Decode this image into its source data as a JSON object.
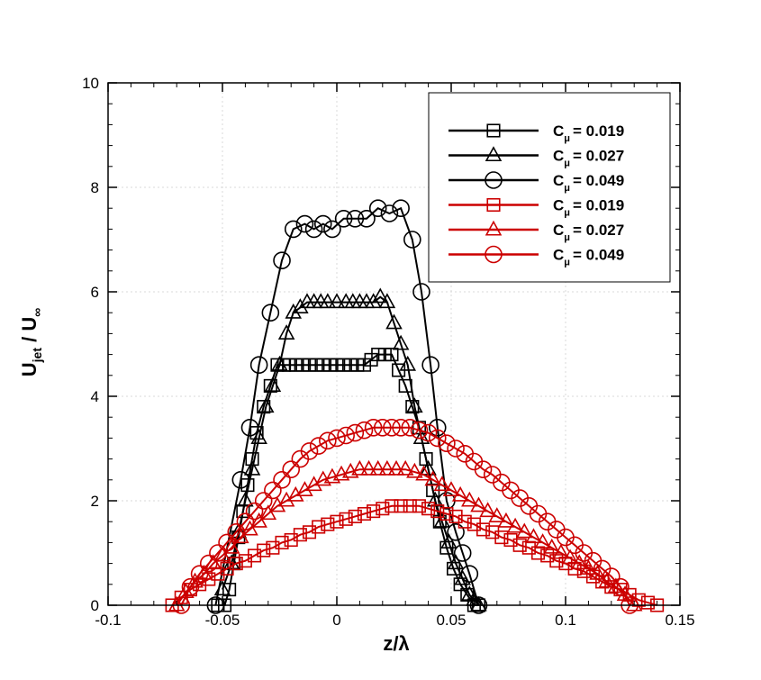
{
  "chart_data": {
    "type": "line",
    "xlabel": "z/λ",
    "ylabel": "U_jet / U_∞",
    "xlim": [
      -0.1,
      0.15
    ],
    "ylim": [
      0,
      10
    ],
    "xticks": [
      -0.1,
      -0.05,
      0,
      0.05,
      0.1,
      0.15
    ],
    "xtick_labels": [
      "-0.1",
      "-0.05",
      "0",
      "0.05",
      "0.1",
      "0.15"
    ],
    "yticks": [
      0,
      2,
      4,
      6,
      8,
      10
    ],
    "ytick_labels": [
      "0",
      "2",
      "4",
      "6",
      "8",
      "10"
    ],
    "grid": true,
    "legend_position": "top-right",
    "colors": {
      "black": "#000000",
      "red": "#cc0000"
    },
    "series": [
      {
        "label_prefix": "C",
        "label_sub": "μ",
        "label_value": "= 0.019",
        "color": "#000000",
        "marker": "square",
        "x": [
          -0.052,
          -0.049,
          -0.047,
          -0.045,
          -0.043,
          -0.041,
          -0.039,
          -0.037,
          -0.035,
          -0.032,
          -0.029,
          -0.026,
          -0.023,
          -0.021,
          -0.018,
          -0.015,
          -0.012,
          -0.009,
          -0.006,
          -0.003,
          0.0,
          0.003,
          0.006,
          0.009,
          0.012,
          0.015,
          0.018,
          0.021,
          0.024,
          0.027,
          0.03,
          0.033,
          0.036,
          0.039,
          0.042,
          0.045,
          0.048,
          0.051,
          0.054,
          0.057,
          0.06,
          0.062
        ],
        "y": [
          0.0,
          0.0,
          0.3,
          0.8,
          1.3,
          1.8,
          2.3,
          2.8,
          3.3,
          3.8,
          4.2,
          4.6,
          4.6,
          4.6,
          4.6,
          4.6,
          4.6,
          4.6,
          4.6,
          4.6,
          4.6,
          4.6,
          4.6,
          4.6,
          4.6,
          4.7,
          4.8,
          4.8,
          4.8,
          4.5,
          4.2,
          3.8,
          3.4,
          2.8,
          2.2,
          1.6,
          1.1,
          0.7,
          0.4,
          0.2,
          0.0,
          0.0
        ]
      },
      {
        "label_prefix": "C",
        "label_sub": "μ",
        "label_value": "= 0.027",
        "color": "#000000",
        "marker": "triangle",
        "x": [
          -0.05,
          -0.046,
          -0.043,
          -0.04,
          -0.037,
          -0.034,
          -0.031,
          -0.028,
          -0.025,
          -0.022,
          -0.019,
          -0.016,
          -0.013,
          -0.01,
          -0.007,
          -0.004,
          0.0,
          0.004,
          0.007,
          0.01,
          0.013,
          0.016,
          0.019,
          0.022,
          0.025,
          0.028,
          0.031,
          0.034,
          0.037,
          0.04,
          0.043,
          0.046,
          0.049,
          0.052,
          0.055,
          0.058,
          0.06,
          0.062
        ],
        "y": [
          0.3,
          0.8,
          1.4,
          2.0,
          2.6,
          3.2,
          3.8,
          4.2,
          4.6,
          5.2,
          5.6,
          5.7,
          5.8,
          5.8,
          5.8,
          5.8,
          5.8,
          5.8,
          5.8,
          5.8,
          5.8,
          5.8,
          5.9,
          5.8,
          5.4,
          5.0,
          4.6,
          3.8,
          3.2,
          2.6,
          2.0,
          1.6,
          1.2,
          0.8,
          0.5,
          0.2,
          0.1,
          0.0
        ]
      },
      {
        "label_prefix": "C",
        "label_sub": "μ",
        "label_value": "= 0.049",
        "color": "#000000",
        "marker": "circle",
        "x": [
          -0.053,
          -0.042,
          -0.038,
          -0.034,
          -0.029,
          -0.024,
          -0.019,
          -0.014,
          -0.01,
          -0.006,
          -0.002,
          0.003,
          0.008,
          0.013,
          0.018,
          0.023,
          0.028,
          0.033,
          0.037,
          0.041,
          0.044,
          0.048,
          0.052,
          0.055,
          0.058,
          0.062
        ],
        "y": [
          0.0,
          2.4,
          3.4,
          4.6,
          5.6,
          6.6,
          7.2,
          7.3,
          7.2,
          7.3,
          7.2,
          7.4,
          7.4,
          7.4,
          7.6,
          7.5,
          7.6,
          7.0,
          6.0,
          4.6,
          3.4,
          2.0,
          1.4,
          1.0,
          0.6,
          0.0
        ]
      },
      {
        "label_prefix": "C",
        "label_sub": "μ",
        "label_value": "= 0.019",
        "color": "#cc0000",
        "marker": "square",
        "x": [
          -0.072,
          -0.068,
          -0.064,
          -0.06,
          -0.056,
          -0.052,
          -0.048,
          -0.044,
          -0.04,
          -0.036,
          -0.032,
          -0.028,
          -0.024,
          -0.02,
          -0.016,
          -0.012,
          -0.008,
          -0.004,
          0.0,
          0.004,
          0.008,
          0.012,
          0.016,
          0.02,
          0.024,
          0.028,
          0.032,
          0.036,
          0.04,
          0.044,
          0.048,
          0.052,
          0.056,
          0.06,
          0.064,
          0.068,
          0.072,
          0.076,
          0.08,
          0.084,
          0.088,
          0.092,
          0.096,
          0.1,
          0.104,
          0.108,
          0.112,
          0.116,
          0.12,
          0.124,
          0.128,
          0.132,
          0.136,
          0.14
        ],
        "y": [
          0.0,
          0.15,
          0.3,
          0.4,
          0.5,
          0.6,
          0.7,
          0.8,
          0.85,
          0.95,
          1.05,
          1.1,
          1.2,
          1.25,
          1.35,
          1.4,
          1.5,
          1.55,
          1.6,
          1.65,
          1.7,
          1.75,
          1.8,
          1.85,
          1.9,
          1.9,
          1.9,
          1.9,
          1.85,
          1.8,
          1.75,
          1.7,
          1.6,
          1.55,
          1.45,
          1.4,
          1.3,
          1.25,
          1.15,
          1.1,
          1.0,
          0.95,
          0.85,
          0.8,
          0.7,
          0.65,
          0.55,
          0.45,
          0.35,
          0.3,
          0.2,
          0.1,
          0.05,
          0.0
        ]
      },
      {
        "label_prefix": "C",
        "label_sub": "μ",
        "label_value": "= 0.027",
        "color": "#cc0000",
        "marker": "triangle",
        "x": [
          -0.07,
          -0.066,
          -0.062,
          -0.058,
          -0.054,
          -0.05,
          -0.046,
          -0.042,
          -0.038,
          -0.034,
          -0.03,
          -0.026,
          -0.022,
          -0.018,
          -0.014,
          -0.01,
          -0.006,
          -0.002,
          0.002,
          0.006,
          0.01,
          0.014,
          0.018,
          0.022,
          0.026,
          0.03,
          0.034,
          0.038,
          0.042,
          0.046,
          0.05,
          0.054,
          0.058,
          0.062,
          0.066,
          0.07,
          0.074,
          0.078,
          0.082,
          0.086,
          0.09,
          0.094,
          0.098,
          0.102,
          0.106,
          0.11,
          0.114,
          0.118,
          0.122,
          0.126,
          0.13
        ],
        "y": [
          0.0,
          0.25,
          0.45,
          0.6,
          0.8,
          0.95,
          1.1,
          1.3,
          1.45,
          1.6,
          1.75,
          1.9,
          2.0,
          2.1,
          2.2,
          2.3,
          2.4,
          2.45,
          2.5,
          2.55,
          2.6,
          2.6,
          2.6,
          2.6,
          2.6,
          2.6,
          2.55,
          2.5,
          2.4,
          2.3,
          2.2,
          2.1,
          2.0,
          1.9,
          1.8,
          1.7,
          1.6,
          1.5,
          1.4,
          1.3,
          1.2,
          1.1,
          1.0,
          0.9,
          0.8,
          0.7,
          0.6,
          0.45,
          0.35,
          0.2,
          0.0
        ]
      },
      {
        "label_prefix": "C",
        "label_sub": "μ",
        "label_value": "= 0.049",
        "color": "#cc0000",
        "marker": "circle",
        "x": [
          -0.068,
          -0.064,
          -0.06,
          -0.056,
          -0.052,
          -0.048,
          -0.044,
          -0.04,
          -0.036,
          -0.032,
          -0.028,
          -0.024,
          -0.02,
          -0.016,
          -0.012,
          -0.008,
          -0.004,
          0.0,
          0.004,
          0.008,
          0.012,
          0.016,
          0.02,
          0.024,
          0.028,
          0.032,
          0.036,
          0.04,
          0.044,
          0.048,
          0.052,
          0.056,
          0.06,
          0.064,
          0.068,
          0.072,
          0.076,
          0.08,
          0.084,
          0.088,
          0.092,
          0.096,
          0.1,
          0.104,
          0.108,
          0.112,
          0.116,
          0.12,
          0.124,
          0.128
        ],
        "y": [
          0.0,
          0.35,
          0.6,
          0.8,
          1.0,
          1.2,
          1.4,
          1.6,
          1.8,
          2.0,
          2.2,
          2.4,
          2.6,
          2.8,
          2.95,
          3.05,
          3.15,
          3.2,
          3.25,
          3.3,
          3.35,
          3.4,
          3.4,
          3.4,
          3.4,
          3.4,
          3.35,
          3.3,
          3.2,
          3.1,
          3.0,
          2.9,
          2.75,
          2.6,
          2.5,
          2.35,
          2.2,
          2.05,
          1.9,
          1.75,
          1.6,
          1.45,
          1.3,
          1.15,
          1.0,
          0.85,
          0.7,
          0.55,
          0.35,
          0.0
        ]
      }
    ]
  }
}
